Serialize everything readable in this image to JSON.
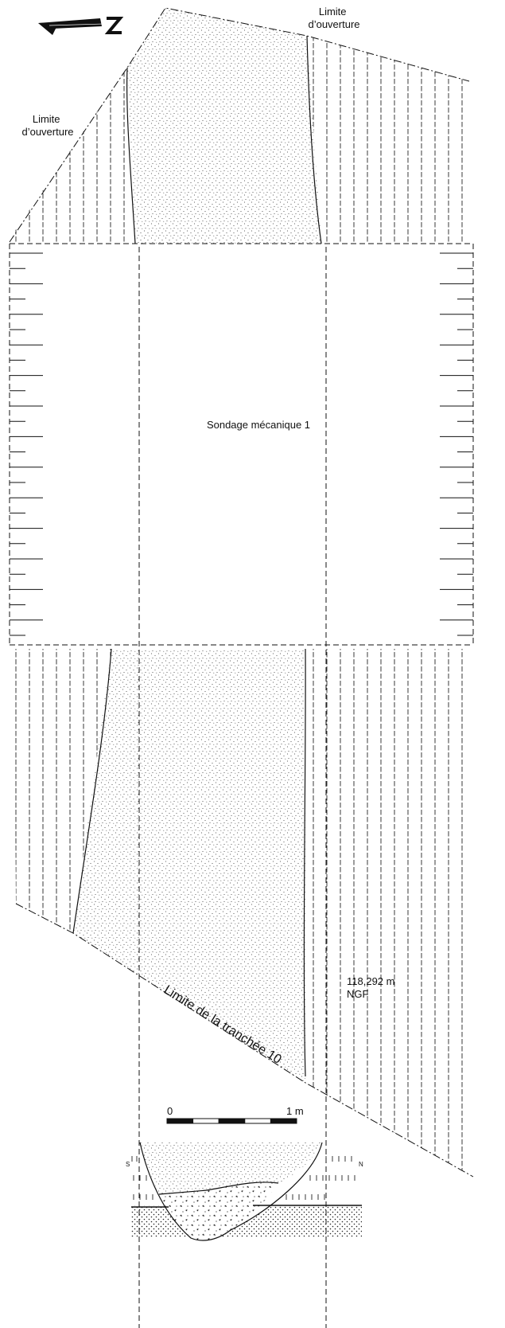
{
  "labels": {
    "limit_left": [
      "Limite",
      "d’ouverture"
    ],
    "limit_right": [
      "Limite",
      "d’ouverture"
    ],
    "sondage": "Sondage mécanique 1",
    "trench": "Limite de la tranchée 10",
    "altitude": [
      "118,292 m",
      "NGF"
    ],
    "north": "N",
    "section_south": "S",
    "section_north": "N"
  },
  "scale": {
    "start_label": "0",
    "end_label": "1 m",
    "segments": 5
  }
}
